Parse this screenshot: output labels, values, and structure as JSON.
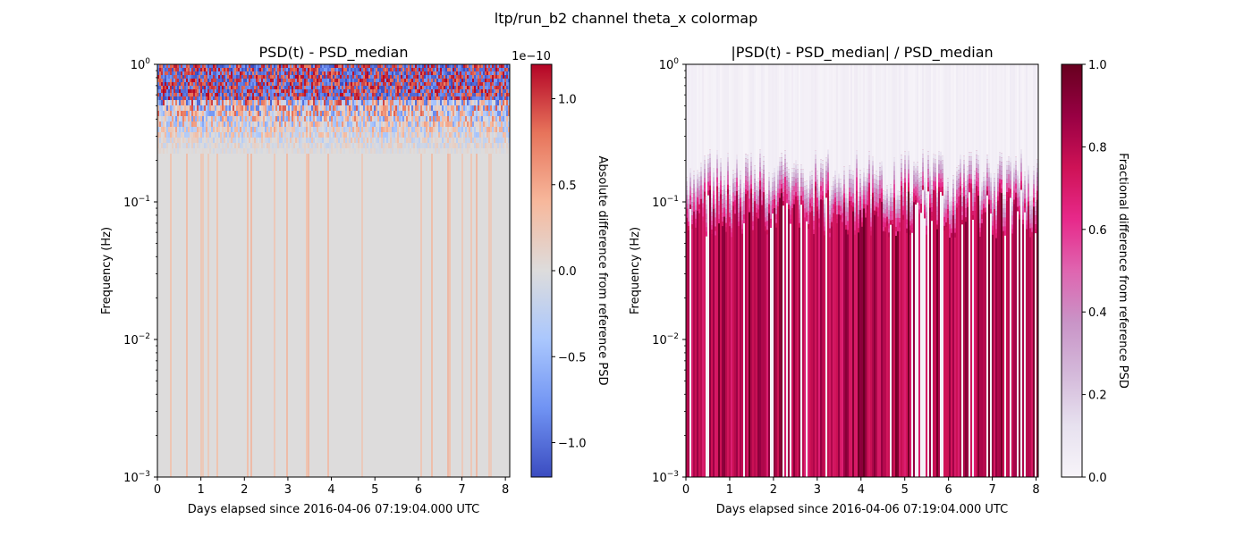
{
  "figure": {
    "suptitle": "ltp/run_b2 channel theta_x colormap"
  },
  "chart_data": [
    {
      "type": "heatmap",
      "title": "PSD(t) - PSD_median",
      "xlabel": "Days elapsed since 2016-04-06 07:19:04.000 UTC",
      "ylabel": "Frequency (Hz)",
      "xlim": [
        0,
        8.1
      ],
      "ylim": [
        0.001,
        1
      ],
      "yscale": "log",
      "xticks": [
        0,
        1,
        2,
        3,
        4,
        5,
        6,
        7,
        8
      ],
      "xtick_labels": [
        "0",
        "1",
        "2",
        "3",
        "4",
        "5",
        "6",
        "7",
        "8"
      ],
      "yticks": [
        {
          "value": 0.001,
          "base": "10",
          "exp": "−3"
        },
        {
          "value": 0.01,
          "base": "10",
          "exp": "−2"
        },
        {
          "value": 0.1,
          "base": "10",
          "exp": "−1"
        },
        {
          "value": 1,
          "base": "10",
          "exp": "0"
        }
      ],
      "colormap": "coolwarm",
      "colorbar": {
        "label": "Absolute difference from reference PSD",
        "offset_label": "1e−10",
        "range": [
          -1.2,
          1.2
        ],
        "ticks": [
          1.0,
          0.5,
          0.0,
          -0.5,
          -1.0
        ],
        "tick_labels": [
          "1.0",
          "0.5",
          "0.0",
          "−0.5",
          "−1.0"
        ],
        "colors": [
          "#3b4cc0",
          "#7093f3",
          "#aac7fd",
          "#dddcdc",
          "#f7b89c",
          "#e7745b",
          "#b40426"
        ]
      }
    },
    {
      "type": "heatmap",
      "title": "|PSD(t) - PSD_median| / PSD_median",
      "xlabel": "Days elapsed since 2016-04-06 07:19:04.000 UTC",
      "ylabel": "Frequency (Hz)",
      "xlim": [
        0,
        8.05
      ],
      "ylim": [
        0.001,
        1
      ],
      "yscale": "log",
      "xticks": [
        0,
        1,
        2,
        3,
        4,
        5,
        6,
        7,
        8
      ],
      "xtick_labels": [
        "0",
        "1",
        "2",
        "3",
        "4",
        "5",
        "6",
        "7",
        "8"
      ],
      "yticks": [
        {
          "value": 0.001,
          "base": "10",
          "exp": "−3"
        },
        {
          "value": 0.01,
          "base": "10",
          "exp": "−2"
        },
        {
          "value": 0.1,
          "base": "10",
          "exp": "−1"
        },
        {
          "value": 1,
          "base": "10",
          "exp": "0"
        }
      ],
      "colormap": "PuRd",
      "colorbar": {
        "label": "Fractional difference from reference PSD",
        "range": [
          0,
          1
        ],
        "ticks": [
          1.0,
          0.8,
          0.6,
          0.4,
          0.2,
          0.0
        ],
        "tick_labels": [
          "1.0",
          "0.8",
          "0.6",
          "0.4",
          "0.2",
          "0.0"
        ],
        "colors": [
          "#f7f4f9",
          "#e7e1ef",
          "#d4b9da",
          "#c994c7",
          "#df65b0",
          "#e7298a",
          "#ce1256",
          "#980043",
          "#67001f"
        ]
      }
    }
  ]
}
